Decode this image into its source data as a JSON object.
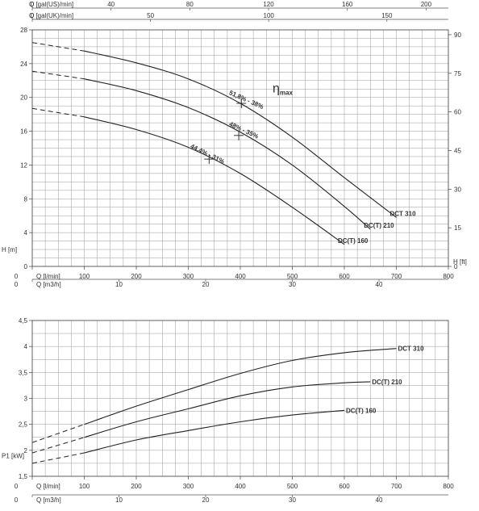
{
  "chart_data": [
    {
      "type": "line",
      "name": "head-chart",
      "top_axes": [
        {
          "label": "Q [gal(US)/min]",
          "ticks": [
            0,
            40,
            80,
            120,
            160,
            200
          ],
          "max": 211.3
        },
        {
          "label": "Q [gal(UK)/min]",
          "ticks": [
            0,
            50,
            100,
            150
          ],
          "max": 176
        }
      ],
      "xlabel": "Q [l/min]",
      "xlim": [
        0,
        800
      ],
      "xticks": [
        0,
        100,
        200,
        300,
        400,
        500,
        600,
        700,
        800
      ],
      "x2label": "Q [m3/h]",
      "x2ticks": [
        0,
        10,
        20,
        30,
        40
      ],
      "ylabel": "H [m]",
      "ylim": [
        0,
        28
      ],
      "yticks": [
        0,
        4,
        8,
        12,
        16,
        20,
        24,
        28
      ],
      "y2label": "H [ft]",
      "y2ticks": [
        0,
        15,
        30,
        45,
        60,
        75,
        90
      ],
      "grid": true,
      "series": [
        {
          "name": "DCT 310",
          "dashed_until": 100,
          "x": [
            0,
            100,
            200,
            300,
            400,
            500,
            600,
            700
          ],
          "y": [
            26.5,
            25.5,
            24.1,
            22.2,
            19.3,
            15.3,
            10.5,
            5.8
          ]
        },
        {
          "name": "DC(T) 210",
          "dashed_until": 100,
          "x": [
            0,
            100,
            200,
            300,
            400,
            500,
            600,
            650
          ],
          "y": [
            23.1,
            22.2,
            20.8,
            18.8,
            15.9,
            12.0,
            7.1,
            4.4
          ]
        },
        {
          "name": "DC(T) 160",
          "dashed_until": 100,
          "x": [
            0,
            100,
            200,
            300,
            400,
            500,
            600
          ],
          "y": [
            18.7,
            17.7,
            16.2,
            14.1,
            11.0,
            7.0,
            2.6
          ]
        }
      ],
      "annotations": [
        {
          "text": "51,8% - 38%",
          "x": 410,
          "y": 19.5,
          "angle": 24
        },
        {
          "text": "48% - 35%",
          "x": 405,
          "y": 15.9,
          "angle": 25
        },
        {
          "text": "44,4% - 31%",
          "x": 335,
          "y": 13.1,
          "angle": 26
        },
        {
          "text": "η",
          "sub": "max",
          "x": 462,
          "y": 20.6
        }
      ],
      "markers": [
        {
          "x": 402,
          "y": 19.3
        },
        {
          "x": 397,
          "y": 15.5
        },
        {
          "x": 340,
          "y": 12.7
        }
      ]
    },
    {
      "type": "line",
      "name": "power-chart",
      "xlabel": "Q [l/min]",
      "xlim": [
        0,
        800
      ],
      "xticks": [
        0,
        100,
        200,
        300,
        400,
        500,
        600,
        700,
        800
      ],
      "x2label": "Q [m3/h]",
      "x2ticks": [
        0,
        10,
        20,
        30,
        40
      ],
      "ylabel": "P1 [kW]",
      "ylim": [
        1.5,
        4.5
      ],
      "yticks": [
        1.5,
        2,
        2.5,
        3,
        3.5,
        4,
        4.5
      ],
      "ytick_labels": [
        "1,5",
        "2",
        "2,5",
        "3",
        "3,5",
        "4",
        "4,5"
      ],
      "grid": true,
      "series": [
        {
          "name": "DCT 310",
          "dashed_until": 100,
          "x": [
            0,
            100,
            200,
            300,
            400,
            500,
            600,
            700
          ],
          "y": [
            2.15,
            2.5,
            2.85,
            3.17,
            3.48,
            3.73,
            3.88,
            3.96
          ]
        },
        {
          "name": "DC(T) 210",
          "dashed_until": 100,
          "x": [
            0,
            100,
            200,
            300,
            400,
            500,
            600,
            650
          ],
          "y": [
            1.95,
            2.25,
            2.55,
            2.8,
            3.05,
            3.22,
            3.3,
            3.32
          ]
        },
        {
          "name": "DC(T) 160",
          "dashed_until": 100,
          "x": [
            0,
            100,
            200,
            300,
            400,
            500,
            600
          ],
          "y": [
            1.75,
            1.95,
            2.2,
            2.38,
            2.55,
            2.68,
            2.77
          ]
        }
      ]
    }
  ]
}
